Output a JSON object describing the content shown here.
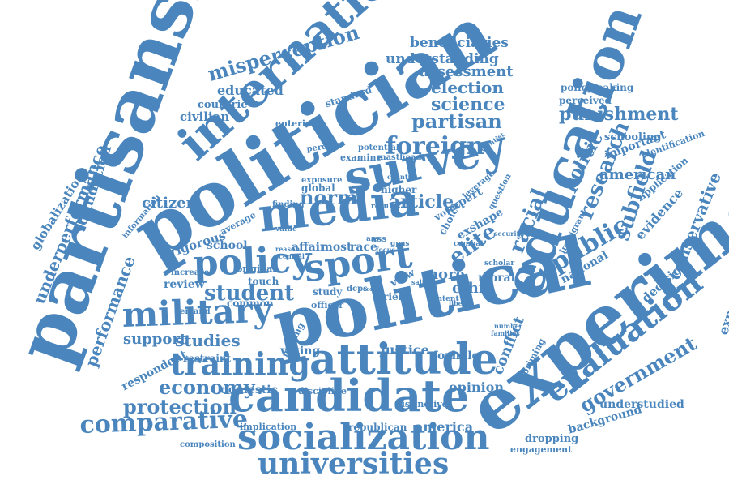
{
  "word_cloud": {
    "color": "#4a86bd",
    "words": [
      "partisanship",
      "politician",
      "political",
      "experiment",
      "education",
      "media",
      "sport",
      "survey",
      "international",
      "military",
      "candidate",
      "attitude",
      "training",
      "socialization",
      "universities",
      "evaluation",
      "comparative",
      "policy",
      "student",
      "foreign",
      "partisan",
      "science",
      "election",
      "assessment",
      "understanding",
      "beneficiaries",
      "misperception",
      "educated",
      "countrie",
      "civilian",
      "standard",
      "entering",
      "perceive",
      "potential",
      "examine",
      "masthead",
      "norm",
      "article",
      "elite",
      "more",
      "ethic",
      "racial",
      "politic",
      "research",
      "public",
      "subfield",
      "american",
      "punishment",
      "schooling",
      "important",
      "identification",
      "application",
      "evidence",
      "conservative",
      "decision",
      "experimental",
      "policymaking",
      "perceived",
      "globalization",
      "underperformance",
      "foundation",
      "performance",
      "citizen",
      "information",
      "rigorous",
      "review",
      "school",
      "average",
      "value",
      "reason",
      "central",
      "affair",
      "most",
      "race",
      "result",
      "ass",
      "voter",
      "choice",
      "expert",
      "exshape",
      "question",
      "leverage",
      "country",
      "higher",
      "global",
      "finding",
      "exposure",
      "original",
      "touch",
      "increase",
      "demand",
      "common",
      "study",
      "officer",
      "dcps",
      "core",
      "view",
      "friend",
      "content",
      "liberal",
      "salient",
      "security",
      "scholar",
      "moral",
      "immigrant",
      "national",
      "combat",
      "studies",
      "support",
      "respondent",
      "restraint",
      "making",
      "economy",
      "domestic",
      "protection",
      "voting",
      "justice",
      "foxhole",
      "conflict",
      "priming",
      "opinion",
      "discipline",
      "distinctive",
      "implication",
      "republican",
      "america",
      "composition",
      "dropping",
      "engagement",
      "background",
      "understudied",
      "government",
      "families",
      "number",
      "scientist",
      "ass",
      "gpas",
      "focus"
    ]
  }
}
